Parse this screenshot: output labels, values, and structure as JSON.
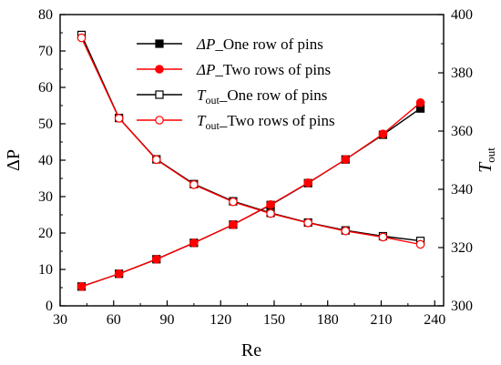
{
  "chart_data": {
    "type": "line",
    "xlabel": "Re",
    "ylabel_left": "ΔP",
    "ylabel_right": "T",
    "ylabel_right_sub": "out",
    "x_ticks": [
      "30",
      "60",
      "90",
      "120",
      "150",
      "180",
      "210",
      "240"
    ],
    "y_left_ticks": [
      "0",
      "10",
      "20",
      "30",
      "40",
      "50",
      "60",
      "70",
      "80"
    ],
    "y_right_ticks": [
      "300",
      "320",
      "340",
      "360",
      "380",
      "400"
    ],
    "xlim": [
      30,
      245
    ],
    "ylim_left": [
      0,
      80
    ],
    "ylim_right": [
      300,
      400
    ],
    "x": [
      42,
      63,
      84,
      105,
      127,
      148,
      169,
      190,
      211,
      232
    ],
    "series": [
      {
        "name": "ΔP_One row of pins",
        "label_main": "ΔP",
        "label_sub": "",
        "label_rest": "_One row of pins",
        "axis": "left",
        "color": "#000000",
        "marker": "square-filled",
        "values": [
          5.3,
          8.8,
          12.8,
          17.3,
          22.3,
          27.7,
          33.7,
          40.2,
          47.0,
          54.2
        ]
      },
      {
        "name": "ΔP_Two rows of pins",
        "label_main": "ΔP",
        "label_sub": "",
        "label_rest": "_Two rows of pins",
        "axis": "left",
        "color": "#ff0000",
        "marker": "circle-filled",
        "values": [
          5.3,
          8.8,
          12.8,
          17.3,
          22.3,
          27.8,
          33.8,
          40.2,
          47.2,
          55.8
        ]
      },
      {
        "name": "Tout_One row of pins",
        "label_main": "T",
        "label_sub": "out",
        "label_rest": "_One row of pins",
        "axis": "right",
        "color": "#000000",
        "marker": "square-open",
        "values": [
          393.0,
          364.5,
          350.3,
          341.8,
          335.9,
          331.9,
          328.6,
          325.9,
          323.9,
          322.3
        ]
      },
      {
        "name": "Tout_Two rows of pins",
        "label_main": "T",
        "label_sub": "out",
        "label_rest": "_Two rows of pins",
        "axis": "right",
        "color": "#ff0000",
        "marker": "circle-open",
        "values": [
          392.0,
          364.4,
          350.2,
          341.6,
          335.7,
          331.7,
          328.5,
          325.7,
          323.6,
          321.1
        ]
      }
    ],
    "legend_position": "top-right",
    "grid": false
  }
}
